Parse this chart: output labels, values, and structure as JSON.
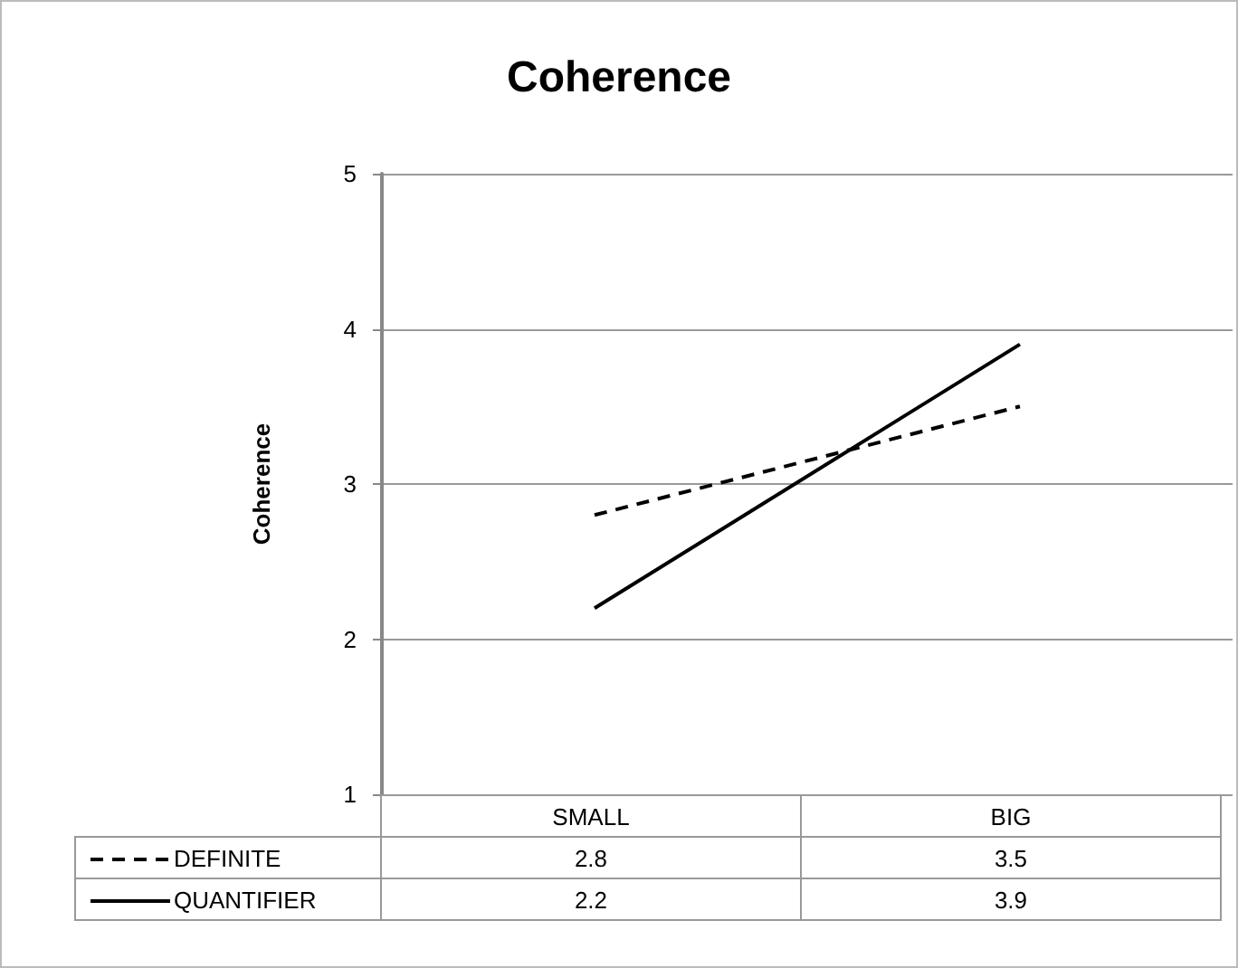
{
  "chart_data": {
    "type": "line",
    "title": "Coherence",
    "ylabel": "Coherence",
    "categories": [
      "SMALL",
      "BIG"
    ],
    "series": [
      {
        "name": "DEFINITE",
        "color": "#000000",
        "values": [
          2.8,
          3.5
        ],
        "line_style": "dashed"
      },
      {
        "name": "QUANTIFIER",
        "color": "#000000",
        "values": [
          2.2,
          3.9
        ],
        "line_style": "solid"
      }
    ],
    "ylim": [
      1,
      5
    ],
    "yticks": [
      1,
      2,
      3,
      4,
      5
    ],
    "grid": "y",
    "legend": "bottom left",
    "data_labels": true,
    "marker": "none"
  }
}
